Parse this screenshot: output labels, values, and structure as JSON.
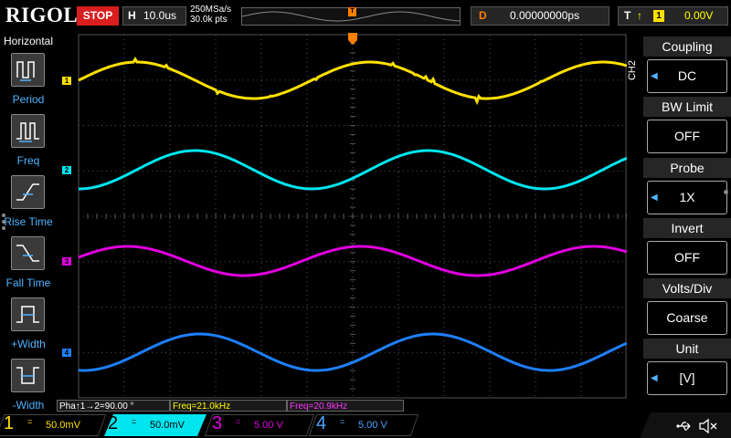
{
  "header": {
    "brand": "RIGOL",
    "run_state": "STOP",
    "horizontal_letter": "H",
    "timebase": "10.0us",
    "sample_rate": "250MSa/s",
    "memory_depth": "30.0k pts",
    "delay_letter": "D",
    "delay": "0.00000000ps",
    "trigger_letter": "T",
    "trigger_source": "1",
    "trigger_level": "0.00V",
    "trigger_marker": "T"
  },
  "left_menu": {
    "title": "Horizontal",
    "items": [
      {
        "label": "Period",
        "icon": "period-icon"
      },
      {
        "label": "Freq",
        "icon": "freq-icon"
      },
      {
        "label": "Rise Time",
        "icon": "rise-time-icon"
      },
      {
        "label": "Fall Time",
        "icon": "fall-time-icon"
      },
      {
        "label": "+Width",
        "icon": "positive-width-icon"
      },
      {
        "label": "-Width",
        "icon": "negative-width-icon"
      }
    ]
  },
  "right_menu": {
    "channel_tag": "CH2",
    "items": [
      {
        "title": "Coupling",
        "value": "DC",
        "has_arrow": true
      },
      {
        "title": "BW Limit",
        "value": "OFF",
        "has_arrow": false
      },
      {
        "title": "Probe",
        "value": "1X",
        "has_arrow": true
      },
      {
        "title": "Invert",
        "value": "OFF",
        "has_arrow": false
      },
      {
        "title": "Volts/Div",
        "value": "Coarse",
        "has_arrow": false
      },
      {
        "title": "Unit",
        "value": "[V]",
        "has_arrow": true
      }
    ]
  },
  "measurements": {
    "phase": "Pha↑1→2=90.00 °",
    "freq1": "Freq=21.0kHz",
    "freq2": "Freq=20.9kHz"
  },
  "channels": [
    {
      "number": "1",
      "scale": "50.0mV",
      "color": "#ffe000",
      "marker": "1"
    },
    {
      "number": "2",
      "scale": "50.0mV",
      "color": "#00e5ee",
      "marker": "2"
    },
    {
      "number": "3",
      "scale": "5.00 V",
      "color": "#e000e0",
      "marker": "3"
    },
    {
      "number": "4",
      "scale": "5.00 V",
      "color": "#1e7fff",
      "marker": "4"
    }
  ],
  "coupling_symbol": "=",
  "colors": {
    "stop": "#d81e1e",
    "grid": "#555555",
    "menu_label": "#4fb3ff",
    "trigger": "#ff7f00"
  }
}
